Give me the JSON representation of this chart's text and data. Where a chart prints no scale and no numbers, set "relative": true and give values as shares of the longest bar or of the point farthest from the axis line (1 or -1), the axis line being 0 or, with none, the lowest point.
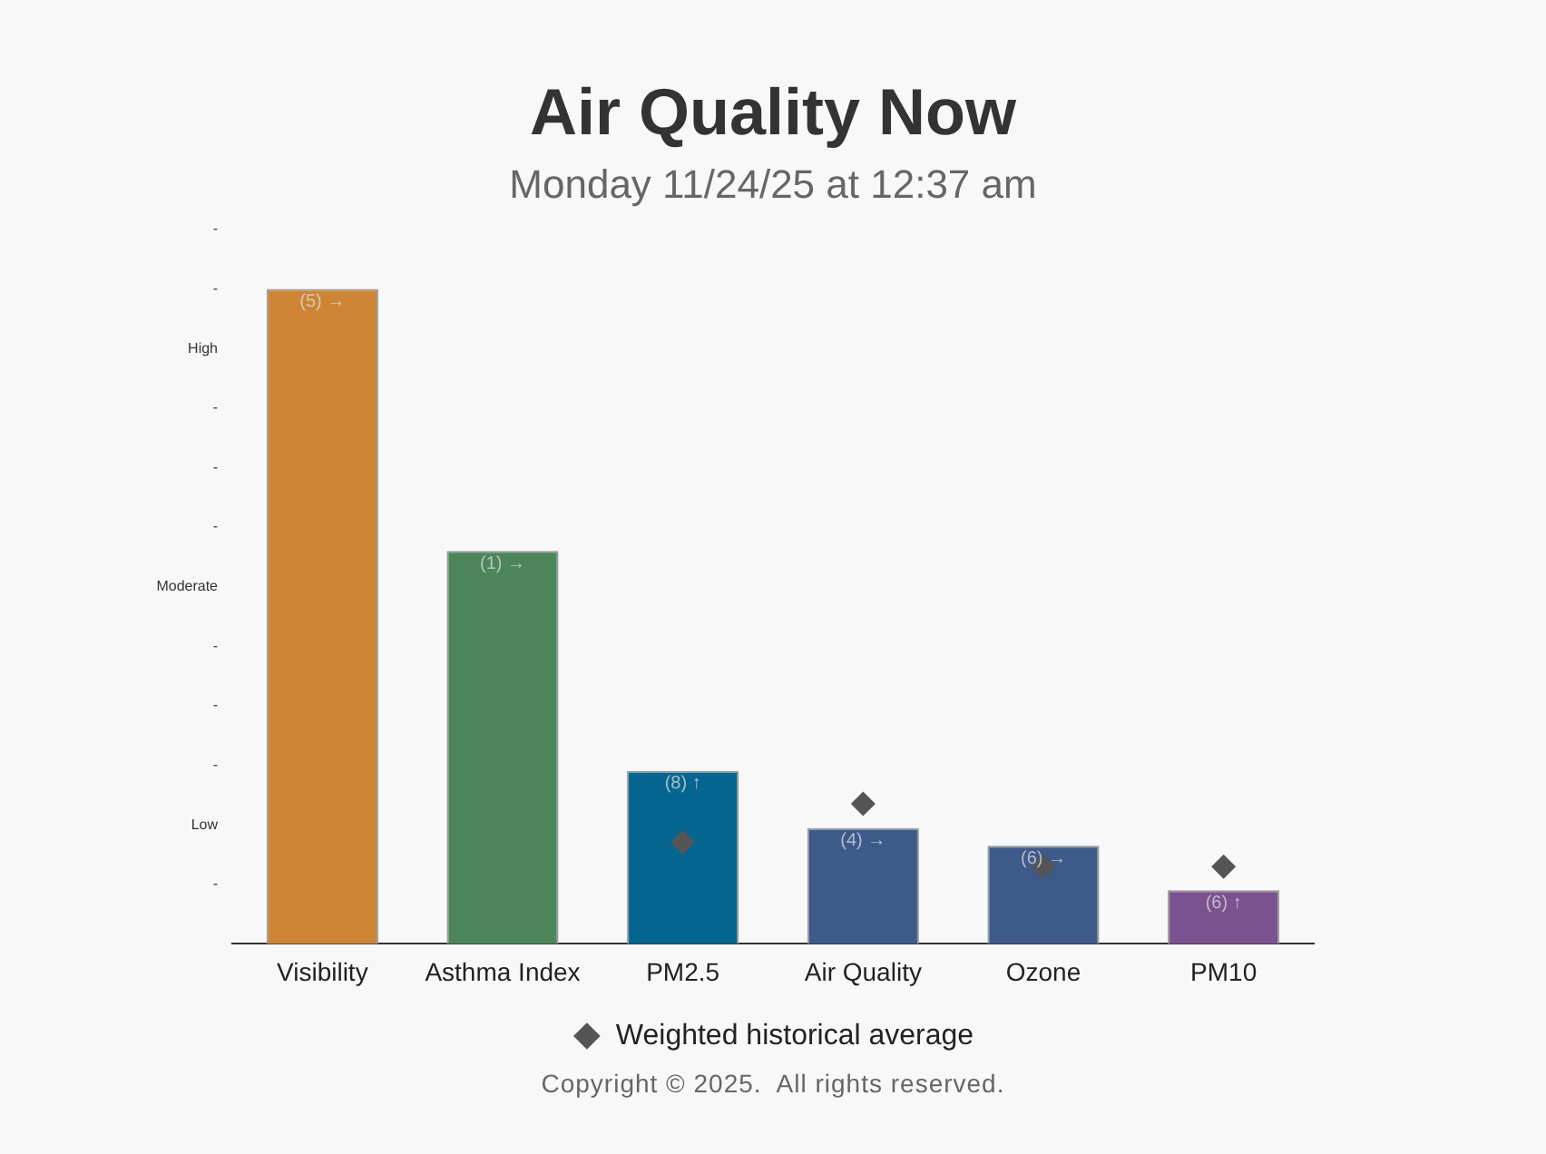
{
  "chart_data": {
    "type": "bar",
    "title": "Air Quality Now",
    "subtitle": "Monday 11/24/25 at 12:37 am",
    "categories": [
      "Visibility",
      "Asthma Index",
      "PM2.5",
      "Air Quality",
      "Ozone",
      "PM10"
    ],
    "relative": true,
    "series": [
      {
        "colors": [
          "#cd8535",
          "#4c8559",
          "#04668f",
          "#3c5a8a",
          "#3d5a8a",
          "#7b5290"
        ],
        "values": [
          1,
          0.6,
          0.264,
          0.177,
          0.15,
          0.082
        ]
      },
      {
        "type": "scatter",
        "name": "Weighted historical average",
        "color": "#555555",
        "marker": "diamond",
        "x": [
          "PM2.5",
          "Air Quality",
          "Ozone",
          "PM10"
        ],
        "values": [
          0.155,
          0.214,
          0.118,
          0.118
        ]
      }
    ],
    "grid": false,
    "legend": "bottom",
    "annotations": [
      {
        "text": "(5) →",
        "x": "Visibility",
        "y": 1
      },
      {
        "text": "(1) →",
        "x": "Asthma Index",
        "y": 0.6
      },
      {
        "text": "(8) ↑",
        "x": "PM2.5",
        "y": 0.264
      },
      {
        "text": "(4) →",
        "x": "Air Quality",
        "y": 0.177
      },
      {
        "text": "(6) →",
        "x": "Ozone",
        "y": 0.15
      },
      {
        "text": "(6) ↑",
        "x": "PM10",
        "y": 0.082
      },
      "-",
      "Low",
      "-",
      "-",
      "-",
      "Moderate",
      "-",
      "-",
      "-",
      "High",
      "-",
      "-",
      "Copyright © 2025.  All rights reserved."
    ]
  }
}
